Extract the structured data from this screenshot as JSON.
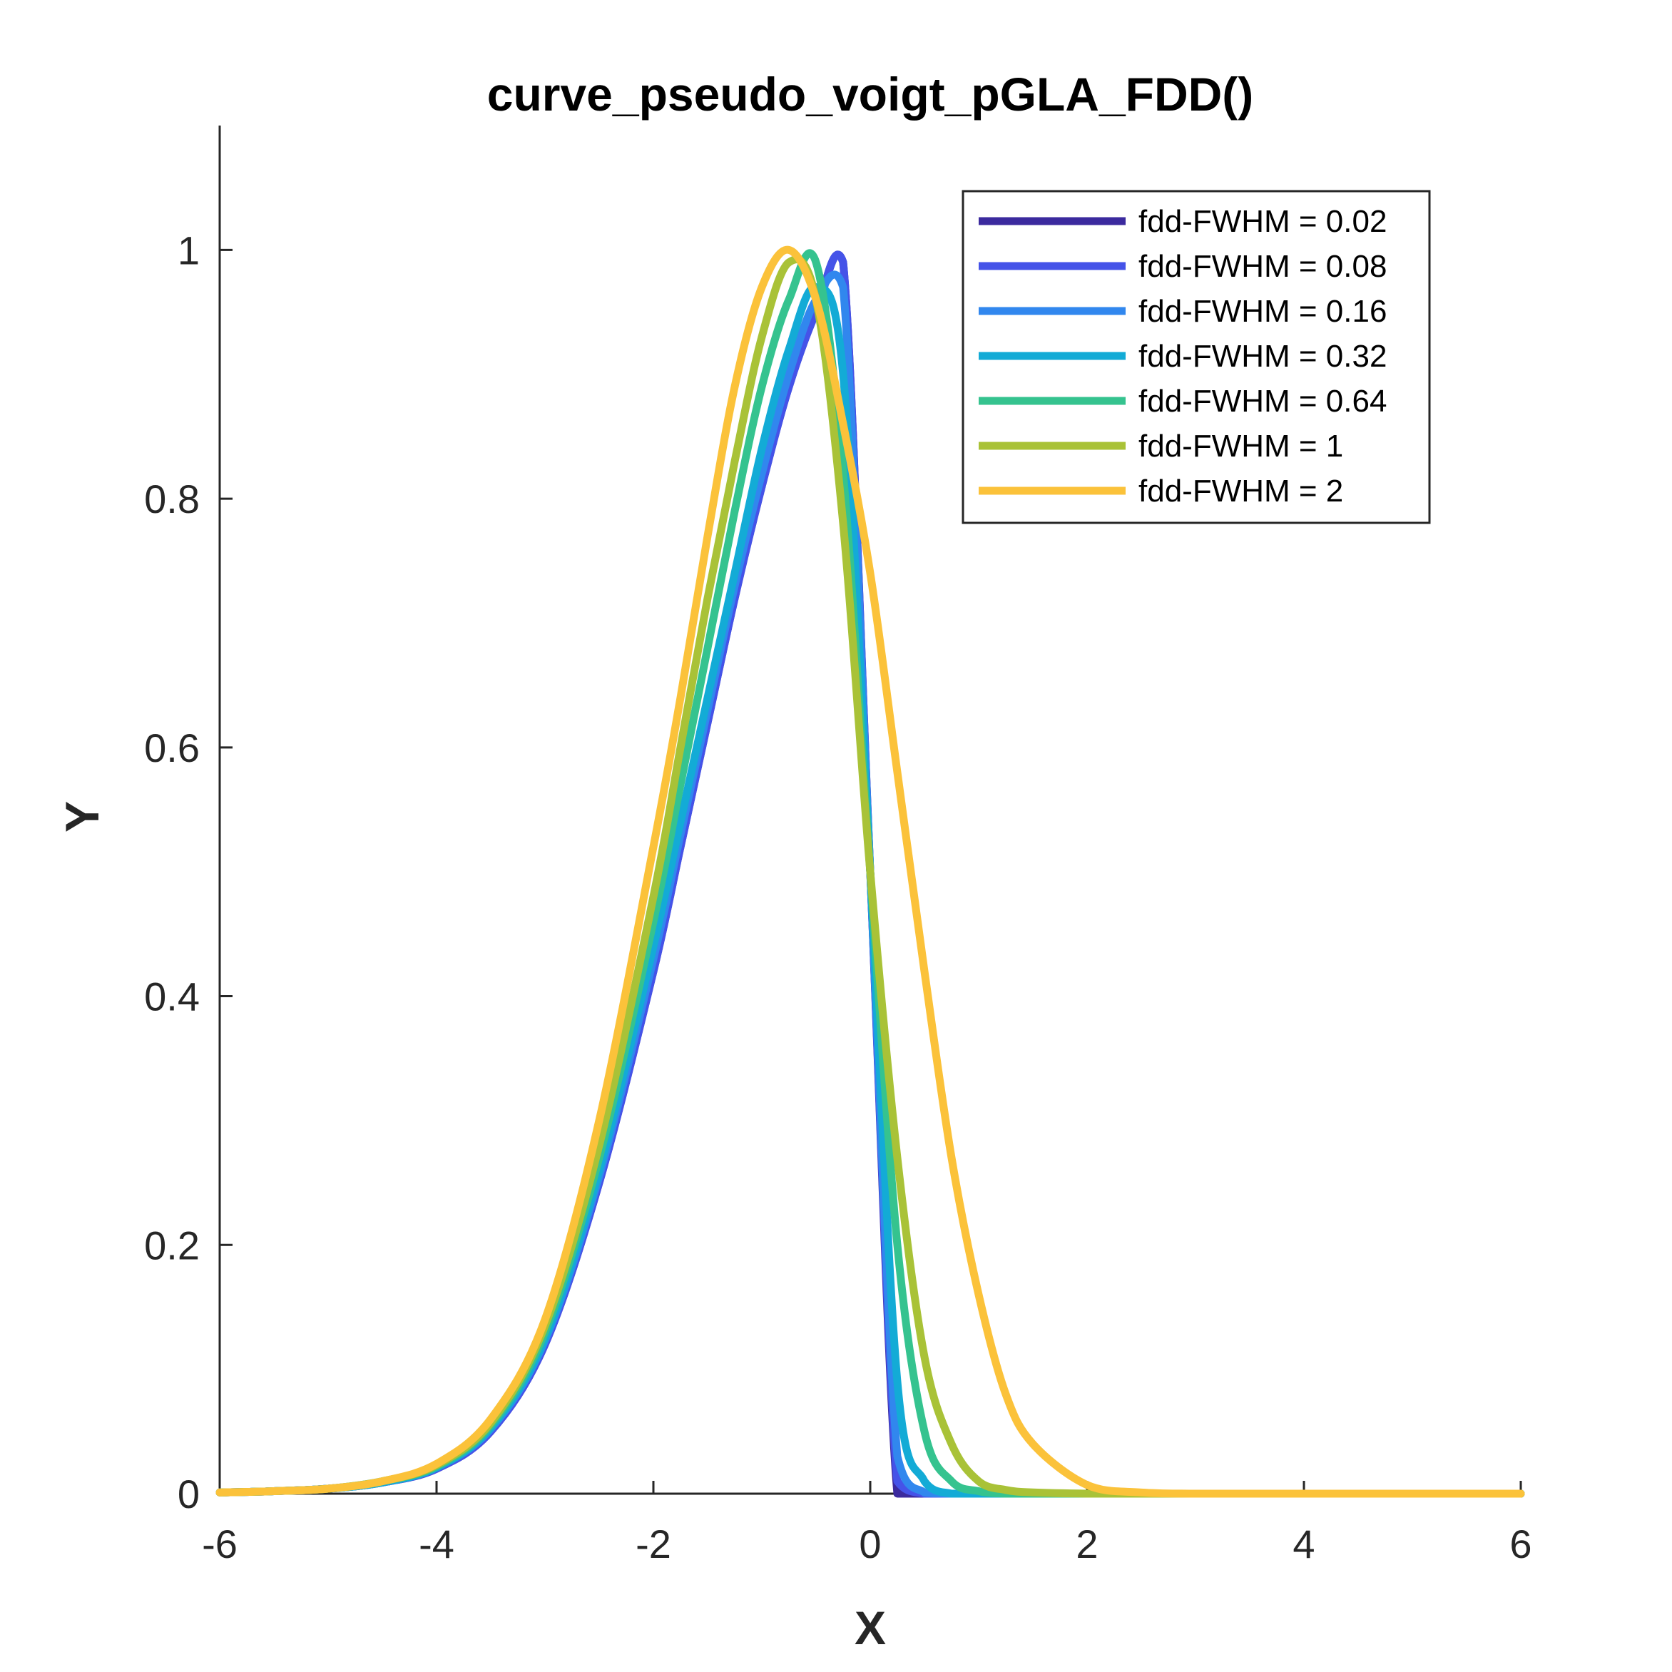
{
  "chart_data": {
    "type": "line",
    "title": "curve_pseudo_voigt_pGLA_FDD()",
    "xlabel": "X",
    "ylabel": "Y",
    "xlim": [
      -6,
      6
    ],
    "ylim": [
      0,
      1.1
    ],
    "xticks": [
      -6,
      -4,
      -2,
      0,
      2,
      4,
      6
    ],
    "xtick_labels": [
      "-6",
      "-4",
      "-2",
      "0",
      "2",
      "4",
      "6"
    ],
    "yticks": [
      0,
      0.2,
      0.4,
      0.6,
      0.8,
      1
    ],
    "ytick_labels": [
      "0",
      "0.2",
      "0.4",
      "0.6",
      "0.8",
      "1"
    ],
    "grid": false,
    "legend_position": "top-right",
    "x": [
      -6,
      -5.5,
      -5,
      -4.5,
      -4,
      -3.5,
      -3,
      -2.5,
      -2,
      -1.75,
      -1.5,
      -1.25,
      -1,
      -0.75,
      -0.5,
      -0.25,
      0,
      0.25,
      0.5,
      0.75,
      1,
      1.25,
      1.5,
      2,
      2.5,
      3,
      4,
      5,
      6
    ],
    "series": [
      {
        "name": "fdd-FWHM = 0.02",
        "color": "#3b2a9e",
        "values": [
          0.001,
          0.002,
          0.004,
          0.009,
          0.02,
          0.05,
          0.12,
          0.25,
          0.42,
          0.52,
          0.62,
          0.72,
          0.81,
          0.89,
          0.95,
          0.99,
          0.5,
          0,
          0,
          0,
          0,
          0,
          0,
          0,
          0,
          0,
          0,
          0,
          0
        ]
      },
      {
        "name": "fdd-FWHM = 0.08",
        "color": "#4553e8",
        "values": [
          0.001,
          0.002,
          0.004,
          0.009,
          0.02,
          0.05,
          0.12,
          0.25,
          0.42,
          0.52,
          0.62,
          0.72,
          0.81,
          0.89,
          0.95,
          0.99,
          0.5,
          0.01,
          0,
          0,
          0,
          0,
          0,
          0,
          0,
          0,
          0,
          0,
          0
        ]
      },
      {
        "name": "fdd-FWHM = 0.16",
        "color": "#3187ee",
        "values": [
          0.001,
          0.002,
          0.004,
          0.009,
          0.021,
          0.052,
          0.123,
          0.255,
          0.43,
          0.53,
          0.63,
          0.73,
          0.82,
          0.9,
          0.96,
          0.97,
          0.5,
          0.03,
          0.001,
          0,
          0,
          0,
          0,
          0,
          0,
          0,
          0,
          0,
          0
        ]
      },
      {
        "name": "fdd-FWHM = 0.32",
        "color": "#13abd6",
        "values": [
          0.001,
          0.002,
          0.004,
          0.009,
          0.021,
          0.053,
          0.125,
          0.26,
          0.44,
          0.54,
          0.64,
          0.74,
          0.84,
          0.92,
          0.97,
          0.9,
          0.5,
          0.09,
          0.01,
          0,
          0,
          0,
          0,
          0,
          0,
          0,
          0,
          0,
          0
        ]
      },
      {
        "name": "fdd-FWHM = 0.64",
        "color": "#35c38f",
        "values": [
          0.001,
          0.002,
          0.004,
          0.01,
          0.022,
          0.055,
          0.13,
          0.27,
          0.46,
          0.57,
          0.68,
          0.79,
          0.89,
          0.96,
          0.99,
          0.82,
          0.5,
          0.2,
          0.05,
          0.01,
          0.002,
          0,
          0,
          0,
          0,
          0,
          0,
          0,
          0
        ]
      },
      {
        "name": "fdd-FWHM = 1",
        "color": "#a9c237",
        "values": [
          0.001,
          0.002,
          0.004,
          0.01,
          0.023,
          0.057,
          0.135,
          0.28,
          0.48,
          0.6,
          0.72,
          0.83,
          0.93,
          0.99,
          0.96,
          0.78,
          0.5,
          0.27,
          0.11,
          0.04,
          0.01,
          0.003,
          0.001,
          0,
          0,
          0,
          0,
          0,
          0
        ]
      },
      {
        "name": "fdd-FWHM = 2",
        "color": "#fbc23a",
        "values": [
          0.001,
          0.002,
          0.004,
          0.01,
          0.024,
          0.06,
          0.14,
          0.3,
          0.52,
          0.64,
          0.77,
          0.89,
          0.97,
          1.0,
          0.96,
          0.86,
          0.74,
          0.58,
          0.42,
          0.27,
          0.16,
          0.08,
          0.04,
          0.007,
          0.001,
          0,
          0,
          0,
          0
        ]
      }
    ]
  }
}
